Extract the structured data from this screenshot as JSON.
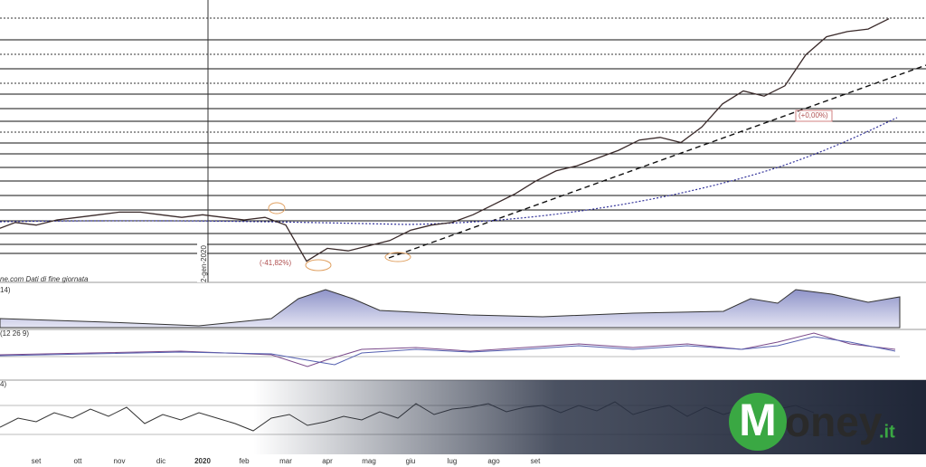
{
  "chart_data": {
    "type": "line",
    "categories": [
      null,
      null,
      "set",
      null,
      "ott",
      null,
      "nov",
      null,
      "dic",
      null,
      "2020",
      null,
      "feb",
      null,
      "mar",
      null,
      "apr",
      null,
      "mag",
      null,
      "giu",
      null,
      "lug",
      null,
      "ago",
      null,
      "set",
      null,
      null,
      null,
      null,
      null,
      null,
      null,
      null,
      null,
      null,
      null,
      null,
      null,
      null,
      null,
      null,
      null
    ],
    "series": [
      {
        "name": null,
        "color": "#3a2a2a",
        "values": [
          16,
          19,
          18,
          20,
          21,
          22,
          23,
          23,
          22,
          21,
          22,
          21,
          20,
          21,
          18,
          4,
          9,
          8,
          10,
          12,
          16,
          18,
          19,
          22,
          26,
          30,
          35,
          39,
          41,
          44,
          47,
          51,
          52,
          50,
          56,
          65,
          70,
          68,
          72,
          84,
          91,
          93,
          94,
          98
        ]
      }
    ],
    "ylim": [
      0,
      100
    ],
    "annotations": [
      "(-41,82%)",
      "(+0,00%)",
      "2-gen-2020"
    ],
    "source": "ne.com Dati di fine giornata",
    "panel_labels": [
      "14)",
      "(12 26 9)",
      "4)"
    ],
    "logo": {
      "initial": "M",
      "name": "oney",
      "suffix": ".it"
    }
  }
}
